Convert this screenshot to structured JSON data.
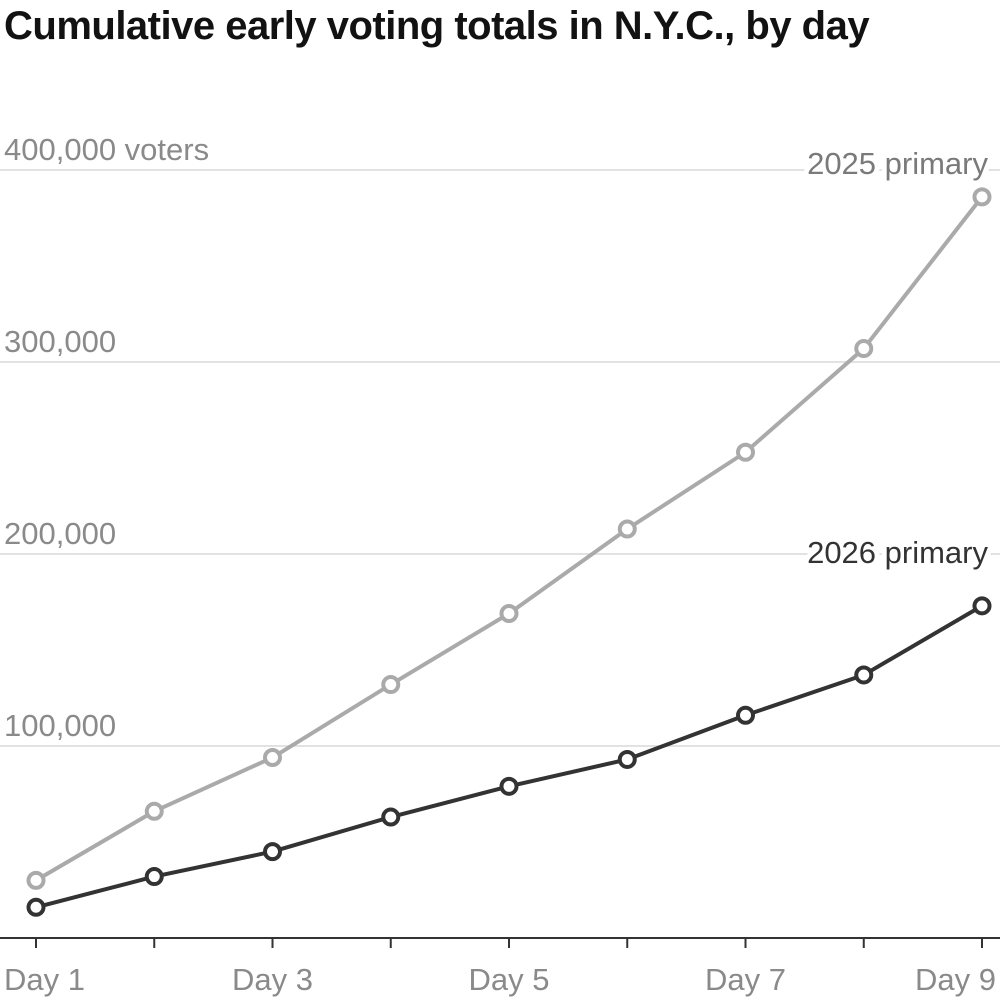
{
  "chart_data": {
    "type": "line",
    "title": "Cumulative early voting totals in N.Y.C., by day",
    "xlabel": "",
    "ylabel": "",
    "x": [
      1,
      2,
      3,
      4,
      5,
      6,
      7,
      8,
      9
    ],
    "x_tick_labels": [
      "Day 1",
      "Day 3",
      "Day 5",
      "Day 7",
      "Day 9"
    ],
    "x_tick_values": [
      1,
      3,
      5,
      7,
      9
    ],
    "y_ticks": [
      {
        "value": 100000,
        "label": "100,000"
      },
      {
        "value": 200000,
        "label": "200,000"
      },
      {
        "value": 300000,
        "label": "300,000"
      },
      {
        "value": 400000,
        "label": "400,000 voters"
      }
    ],
    "ylim": [
      0,
      400000
    ],
    "xlim": [
      1,
      9
    ],
    "grid": true,
    "legend": "direct labels at line ends",
    "series": [
      {
        "name": "2025 primary",
        "color": "#aaaaaa",
        "values": [
          30000,
          66000,
          94000,
          132000,
          169000,
          213000,
          253000,
          307000,
          386000
        ]
      },
      {
        "name": "2026 primary",
        "color": "#333333",
        "values": [
          16000,
          32000,
          45000,
          63000,
          79000,
          93000,
          116000,
          137000,
          173000
        ]
      }
    ]
  }
}
